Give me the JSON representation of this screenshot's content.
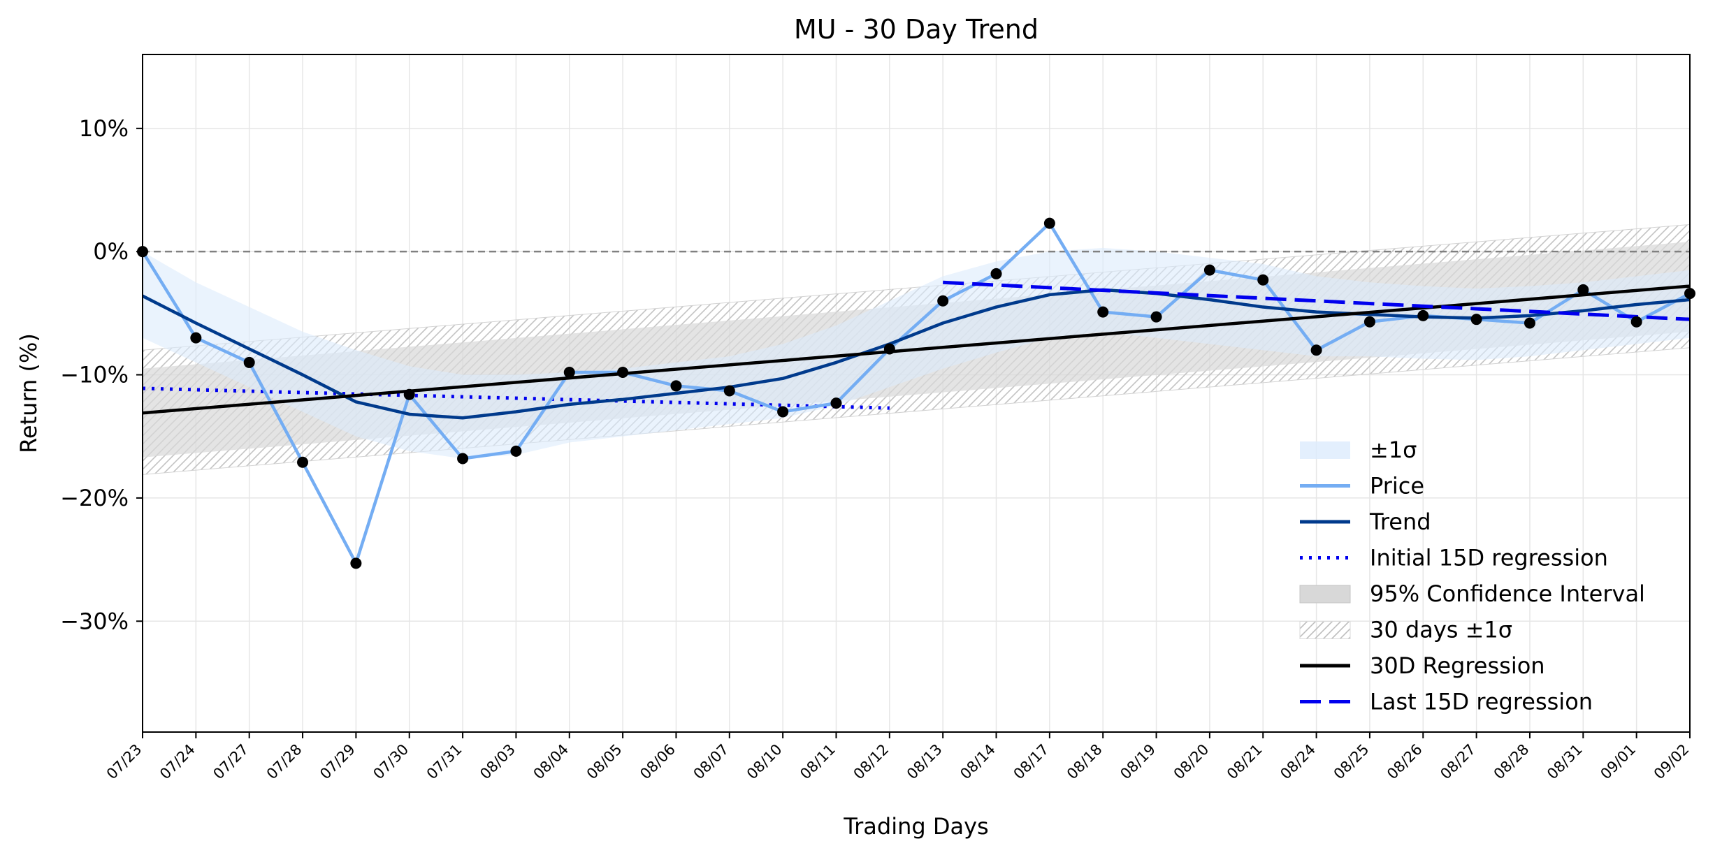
{
  "chart_data": {
    "type": "line",
    "title": "MU - 30 Day Trend",
    "xlabel": "Trading Days",
    "ylabel": "Return (%)",
    "ylim": [
      -39,
      16
    ],
    "yticks": [
      10,
      0,
      -10,
      -20,
      -30
    ],
    "ytick_labels": [
      "10%",
      "0%",
      "−10%",
      "−20%",
      "−30%"
    ],
    "grid": true,
    "legend_position": "lower-right",
    "categories": [
      "07/23",
      "07/24",
      "07/27",
      "07/28",
      "07/29",
      "07/30",
      "07/31",
      "08/03",
      "08/04",
      "08/05",
      "08/06",
      "08/07",
      "08/10",
      "08/11",
      "08/12",
      "08/13",
      "08/14",
      "08/17",
      "08/18",
      "08/19",
      "08/20",
      "08/21",
      "08/24",
      "08/25",
      "08/26",
      "08/27",
      "08/28",
      "08/31",
      "09/01",
      "09/02"
    ],
    "series": [
      {
        "name": "Price",
        "color": "#74adf3",
        "values": [
          0.0,
          -7.0,
          -9.0,
          -17.1,
          -25.3,
          -11.6,
          -16.8,
          -16.2,
          -9.8,
          -9.8,
          -10.9,
          -11.3,
          -13.0,
          -12.3,
          -7.9,
          -4.0,
          -1.8,
          2.3,
          -4.9,
          -5.3,
          -1.5,
          -2.3,
          -8.0,
          -5.7,
          -5.2,
          -5.5,
          -5.8,
          -3.1,
          -5.7,
          -3.4
        ]
      },
      {
        "name": "Trend",
        "color": "#003a8c",
        "values": [
          -3.6,
          -5.8,
          -7.9,
          -10.0,
          -12.2,
          -13.2,
          -13.5,
          -13.0,
          -12.4,
          -12.0,
          -11.5,
          -11.0,
          -10.3,
          -9.0,
          -7.5,
          -5.8,
          -4.5,
          -3.5,
          -3.1,
          -3.4,
          -3.9,
          -4.5,
          -4.9,
          -5.1,
          -5.3,
          -5.4,
          -5.2,
          -4.8,
          -4.3,
          -3.9
        ]
      },
      {
        "name": "30D Regression",
        "color": "#000000",
        "x_range": [
          0,
          29
        ],
        "y_range": [
          -13.1,
          -2.8
        ]
      },
      {
        "name": "Initial 15D regression",
        "color": "#0000ee",
        "x_range": [
          0,
          14
        ],
        "y_range": [
          -11.1,
          -12.7
        ]
      },
      {
        "name": "Last 15D regression",
        "color": "#0000ee",
        "x_range": [
          15,
          29
        ],
        "y_range": [
          -2.5,
          -5.5
        ]
      }
    ],
    "bands": [
      {
        "name": "±1σ",
        "color": "#dcebfc",
        "upper": [
          0.0,
          -2.5,
          -4.5,
          -6.5,
          -8.0,
          -9.3,
          -10.0,
          -10.0,
          -9.8,
          -9.5,
          -9.0,
          -8.5,
          -7.5,
          -6.0,
          -4.0,
          -2.0,
          -0.8,
          0.0,
          0.3,
          0.0,
          -0.5,
          -1.0,
          -2.0,
          -2.5,
          -2.8,
          -3.0,
          -2.8,
          -2.5,
          -2.0,
          -1.5
        ],
        "lower": [
          -7.0,
          -9.0,
          -11.0,
          -13.0,
          -15.0,
          -16.2,
          -16.8,
          -16.5,
          -15.5,
          -15.0,
          -14.5,
          -14.0,
          -13.5,
          -12.5,
          -11.0,
          -9.5,
          -8.2,
          -7.0,
          -6.5,
          -7.0,
          -7.5,
          -8.0,
          -8.5,
          -8.5,
          -8.7,
          -8.8,
          -8.5,
          -8.0,
          -7.5,
          -7.0
        ]
      },
      {
        "name": "95% Confidence Interval",
        "color": "#d8d8d8",
        "x_range": [
          0,
          29
        ],
        "upper_range": [
          -9.5,
          0.8
        ],
        "lower_range": [
          -16.7,
          -6.5
        ]
      },
      {
        "name": "30 days ±1σ",
        "color": "#e6e6e6",
        "hatch": true,
        "x_range": [
          0,
          29
        ],
        "upper_range": [
          -8.0,
          2.2
        ],
        "lower_range": [
          -18.1,
          -7.8
        ]
      }
    ],
    "reference_line": {
      "y": 0,
      "color": "#808080",
      "style": "dashed"
    },
    "legend": [
      "±1σ",
      "Price",
      "Trend",
      "Initial 15D regression",
      "95% Confidence Interval",
      "30 days ±1σ",
      "30D Regression",
      "Last 15D regression"
    ]
  }
}
